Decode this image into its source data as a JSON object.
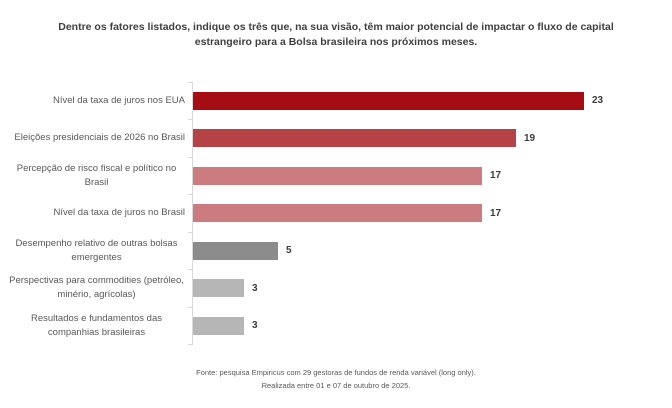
{
  "page": {
    "title_lines": [
      "Dentre os fatores listados,  indique os três que, na sua visão, têm maior potencial de impactar o fluxo de capital",
      "estrangeiro para a Bolsa brasileira nos próximos meses."
    ],
    "footer_lines": [
      "Fonte: pesquisa Empiricus com 29 gestoras de fundos de renda variável (long only).",
      "Realizada entre 01 e 07 de outubro de 2025."
    ]
  },
  "chart_data": {
    "type": "bar",
    "orientation": "horizontal",
    "title": "Dentre os fatores listados, indique os três que, na sua visão, têm maior potencial de impactar o fluxo de capital estrangeiro para a Bolsa brasileira nos próximos meses.",
    "categories": [
      "Nível da taxa de juros nos EUA",
      "Eleições presidenciais de 2026 no Brasil",
      "Percepção de risco fiscal e político no Brasil",
      "Nível da taxa de juros no Brasil",
      "Desempenho relativo de outras bolsas emergentes",
      "Perspectivas para commodities (petróleo, minério, agrícolas)",
      "Resultados e fundamentos das companhias brasileiras"
    ],
    "values": [
      23,
      19,
      17,
      17,
      5,
      3,
      3
    ],
    "bar_colors": [
      "#A50D12",
      "#B54345",
      "#CC7B7E",
      "#CC7B7E",
      "#8C8C8C",
      "#B6B6B6",
      "#B6B6B6"
    ],
    "data_labels": true,
    "xlim": [
      0,
      28
    ],
    "axis_color": "#D9D9D9",
    "grid": false,
    "legend": false,
    "xlabel": "",
    "ylabel": "",
    "source_note": "Fonte: pesquisa Empiricus com 29 gestoras de fundos de renda variável (long only). Realizada entre 01 e 07 de outubro de 2025."
  }
}
